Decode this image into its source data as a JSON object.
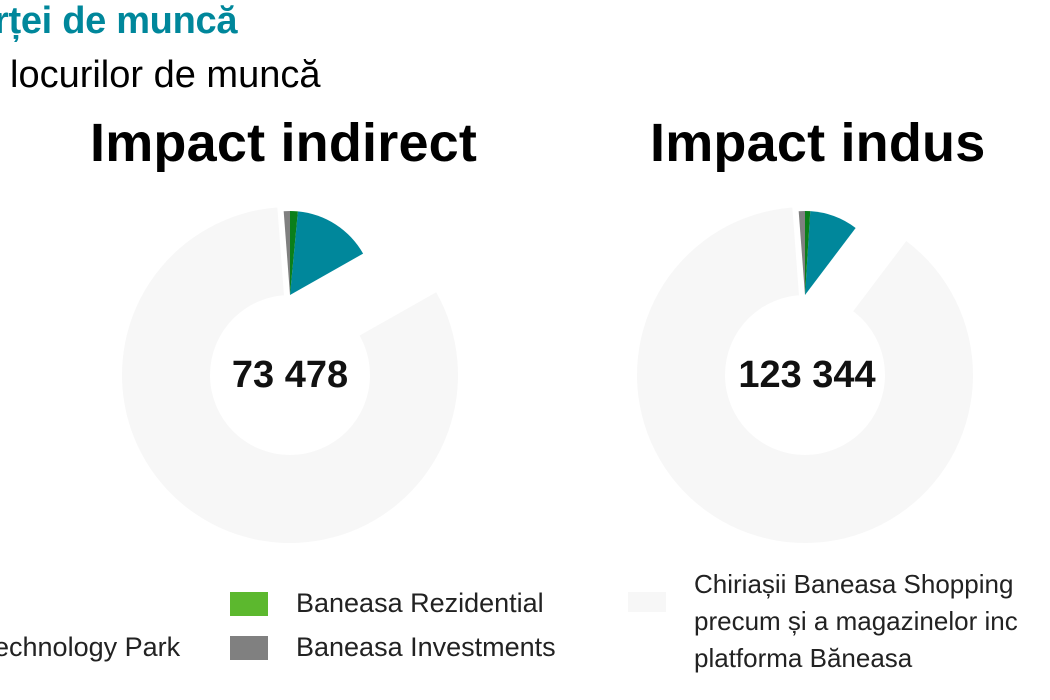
{
  "header": {
    "title_fragment": "rței de muncă",
    "subtitle_fragment": "locurilor de muncă"
  },
  "colors": {
    "teal": "#00879b",
    "green": "#0a7f1a",
    "light_green": "#5cb82e",
    "gray": "#808080",
    "ring": "#f7f7f7"
  },
  "chart_data": [
    {
      "type": "pie",
      "title": "Impact indirect",
      "center_label": "73 478",
      "slices": [
        {
          "label": "Baneasa Investments",
          "value": 0.012,
          "color": "#808080"
        },
        {
          "label": "Baneasa Rezidential",
          "value": 0.015,
          "color": "#0a7f1a"
        },
        {
          "label": "Technology Park",
          "value": 0.153,
          "color": "#00879b"
        },
        {
          "label": "Chiriașii Baneasa Shopping",
          "value": 0.82,
          "color": "#f7f7f7"
        }
      ]
    },
    {
      "type": "pie",
      "title": "Impact indus",
      "center_label": "123 344",
      "slices": [
        {
          "label": "Baneasa Investments",
          "value": 0.012,
          "color": "#808080"
        },
        {
          "label": "Baneasa Rezidential",
          "value": 0.01,
          "color": "#0a7f1a"
        },
        {
          "label": "Technology Park",
          "value": 0.093,
          "color": "#00879b"
        },
        {
          "label": "Chiriașii Baneasa Shopping",
          "value": 0.885,
          "color": "#f7f7f7"
        }
      ]
    }
  ],
  "legend": {
    "tech_label": "echnology Park",
    "rezidential_label": "Baneasa Rezidential",
    "investments_label": "Baneasa Investments",
    "note_lines": [
      "Chiriașii Baneasa Shopping",
      "precum și a magazinelor inc",
      "platforma Băneasa"
    ]
  }
}
